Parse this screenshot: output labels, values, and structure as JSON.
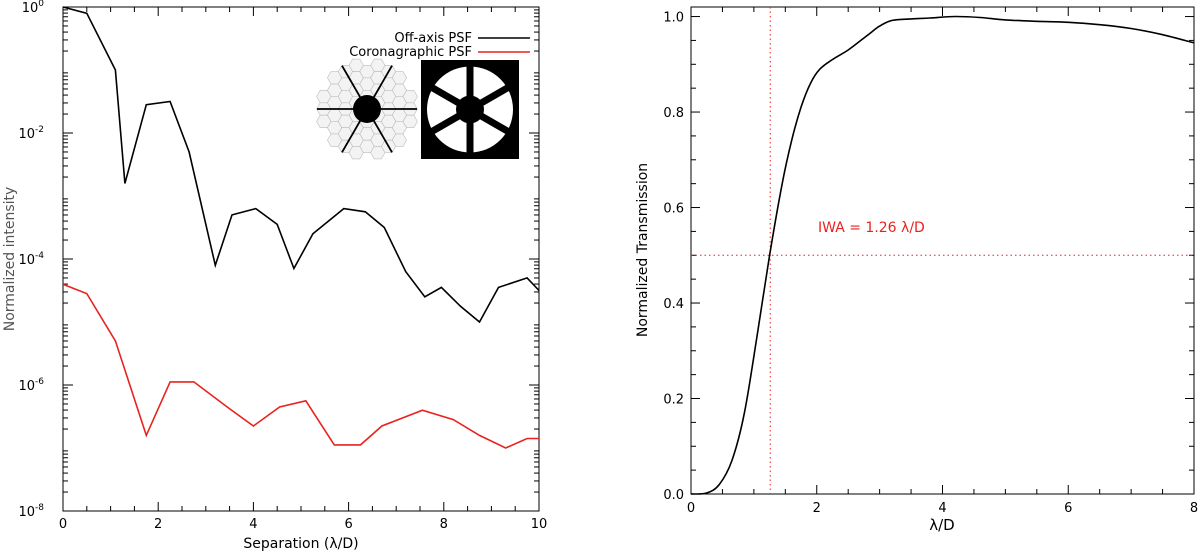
{
  "chart_data": [
    {
      "type": "line",
      "title": "",
      "xlabel": "Separation (λ/D)",
      "ylabel": "Normalized intensity",
      "xlim": [
        0,
        10
      ],
      "ylim_log10": [
        -8,
        0
      ],
      "yscale": "log",
      "x_ticks": [
        0,
        2,
        4,
        6,
        8,
        10
      ],
      "y_ticks": [
        {
          "base": "10",
          "exp": "0",
          "log": 0
        },
        {
          "base": "10",
          "exp": "-2",
          "log": -2
        },
        {
          "base": "10",
          "exp": "-4",
          "log": -4
        },
        {
          "base": "10",
          "exp": "-6",
          "log": -6
        },
        {
          "base": "10",
          "exp": "-8",
          "log": -8
        }
      ],
      "legend_position": "top-right",
      "series": [
        {
          "name": "Off-axis PSF",
          "color": "#000000",
          "x": [
            0,
            0.5,
            1.1,
            1.3,
            1.75,
            2.25,
            2.65,
            3.2,
            3.55,
            4.05,
            4.5,
            4.85,
            5.25,
            5.9,
            6.35,
            6.75,
            7.2,
            7.6,
            7.95,
            8.35,
            8.75,
            9.15,
            9.75,
            10
          ],
          "log10_y": [
            0,
            -0.1,
            -1.0,
            -2.8,
            -1.55,
            -1.5,
            -2.3,
            -4.1,
            -3.3,
            -3.2,
            -3.45,
            -4.15,
            -3.6,
            -3.2,
            -3.25,
            -3.5,
            -4.2,
            -4.6,
            -4.45,
            -4.75,
            -5.0,
            -4.45,
            -4.3,
            -4.5
          ]
        },
        {
          "name": "Coronagraphic PSF",
          "color": "#e8231f",
          "x": [
            0,
            0.5,
            1.1,
            1.75,
            2.25,
            2.75,
            3.45,
            4.0,
            4.55,
            5.1,
            5.7,
            6.25,
            6.7,
            7.55,
            8.2,
            8.75,
            9.3,
            9.75,
            10
          ],
          "log10_y": [
            -4.4,
            -4.55,
            -5.3,
            -6.8,
            -5.95,
            -5.95,
            -6.35,
            -6.65,
            -6.35,
            -6.25,
            -6.95,
            -6.95,
            -6.65,
            -6.4,
            -6.55,
            -6.8,
            -7.0,
            -6.85,
            -6.85
          ]
        }
      ],
      "insets": [
        {
          "name": "segmented-pupil-icon"
        },
        {
          "name": "lyot-stop-icon"
        }
      ]
    },
    {
      "type": "line",
      "title": "",
      "xlabel": "λ/D",
      "ylabel": "Normalized Transmission",
      "xlim": [
        0,
        8
      ],
      "ylim": [
        0,
        1.0
      ],
      "x_ticks": [
        0,
        2,
        4,
        6,
        8
      ],
      "y_ticks": [
        "0.0",
        "0.2",
        "0.4",
        "0.6",
        "0.8",
        "1.0"
      ],
      "series": [
        {
          "name": "",
          "color": "#000000",
          "x": [
            0,
            0.25,
            0.45,
            0.65,
            0.85,
            1.05,
            1.25,
            1.45,
            1.6,
            1.75,
            1.9,
            2.05,
            2.25,
            2.5,
            2.8,
            3.0,
            3.2,
            3.5,
            3.8,
            4.2,
            4.6,
            5.0,
            5.5,
            6.0,
            6.5,
            7.0,
            7.5,
            8.0
          ],
          "y": [
            0,
            0.002,
            0.02,
            0.07,
            0.17,
            0.33,
            0.5,
            0.65,
            0.74,
            0.81,
            0.86,
            0.89,
            0.91,
            0.93,
            0.96,
            0.98,
            0.992,
            0.995,
            0.997,
            1.0,
            0.998,
            0.993,
            0.99,
            0.988,
            0.983,
            0.975,
            0.962,
            0.945
          ]
        }
      ],
      "annotation": {
        "text": "IWA = 1.26 λ/D",
        "iwa_x": 1.26,
        "level_y": 0.5,
        "color": "#e8231f"
      }
    }
  ]
}
